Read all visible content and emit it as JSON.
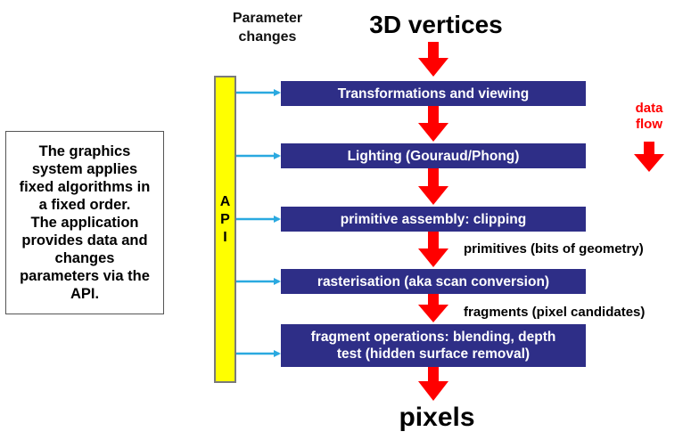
{
  "caption": {
    "lines": [
      "The graphics",
      "system applies",
      "fixed algorithms in",
      "a fixed order.",
      "The application",
      "provides data and",
      "changes",
      "parameters via the",
      "API."
    ]
  },
  "parameter_changes": [
    "Parameter",
    "changes"
  ],
  "api": {
    "letters": [
      "A",
      "P",
      "I"
    ],
    "color": "#ffff00"
  },
  "input_label": "3D vertices",
  "output_label": "pixels",
  "stages": [
    {
      "lines": [
        "Transformations and viewing"
      ]
    },
    {
      "lines": [
        "Lighting (Gouraud/Phong)"
      ]
    },
    {
      "lines": [
        "primitive assembly: clipping"
      ]
    },
    {
      "lines": [
        "rasterisation (aka scan conversion)"
      ]
    },
    {
      "lines": [
        "fragment operations: blending, depth",
        "test (hidden surface removal)"
      ]
    }
  ],
  "between_labels": {
    "primitives": "primitives (bits of geometry)",
    "fragments": "fragments (pixel candidates)"
  },
  "data_flow": [
    "data",
    "flow"
  ],
  "colors": {
    "stage_fill": "#2e2e87",
    "flow_arrow": "#ff0000",
    "param_arrow": "#2aa9e0",
    "data_flow_text": "#ff0000"
  }
}
